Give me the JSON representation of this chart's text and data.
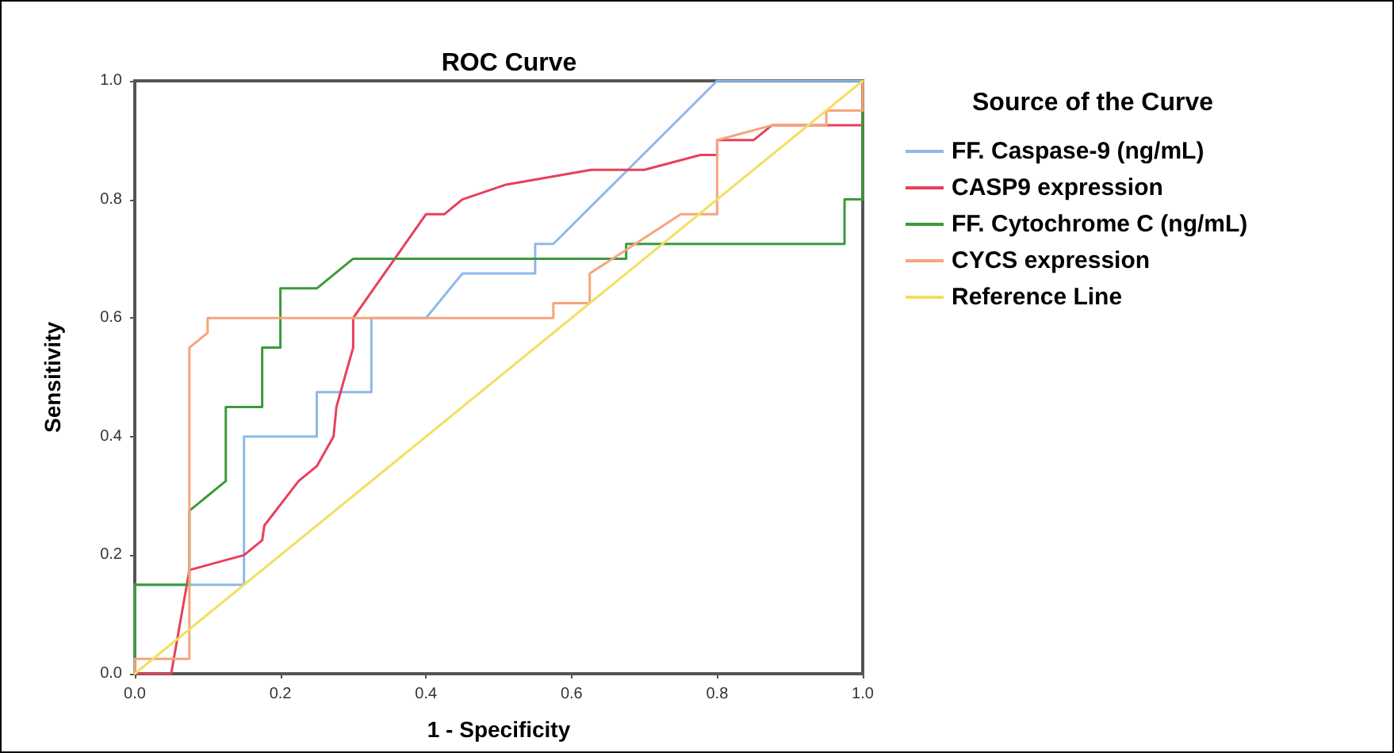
{
  "chart_data": {
    "type": "line",
    "title": "ROC Curve",
    "xlabel": "1 - Specificity",
    "ylabel": "Sensitivity",
    "legend_title": "Source of the Curve",
    "legend": "right",
    "grid": false,
    "marker": "none",
    "line_style": "solid",
    "xlim": [
      0,
      1
    ],
    "ylim": [
      0,
      1
    ],
    "xticks": [
      {
        "value": 0,
        "label": "0.0"
      },
      0.2,
      0.4,
      0.6,
      0.8,
      {
        "value": 1,
        "label": "1.0"
      }
    ],
    "yticks": [
      {
        "value": 0,
        "label": "0.0"
      },
      0.2,
      0.4,
      0.6,
      0.8,
      {
        "value": 1,
        "label": "1.0"
      }
    ],
    "series": [
      {
        "name": "FF. Caspase-9 (ng/mL)",
        "color": "#8db9ea",
        "x": [
          0,
          0,
          0.15,
          0.15,
          0.25,
          0.25,
          0.325,
          0.325,
          0.4,
          0.45,
          0.55,
          0.55,
          0.575,
          0.8,
          1
        ],
        "values": [
          0,
          0.15,
          0.15,
          0.4,
          0.4,
          0.475,
          0.475,
          0.6,
          0.6,
          0.675,
          0.675,
          0.725,
          0.725,
          1,
          1
        ]
      },
      {
        "name": "CASP9 expression",
        "color": "#e8405a",
        "x": [
          0,
          0.05,
          0.075,
          0.15,
          0.175,
          0.178,
          0.225,
          0.25,
          0.273,
          0.277,
          0.293,
          0.3,
          0.3,
          0.4,
          0.425,
          0.45,
          0.51,
          0.627,
          0.7,
          0.777,
          0.8,
          0.8,
          0.85,
          0.875,
          1,
          1
        ],
        "values": [
          0,
          0,
          0.175,
          0.2,
          0.225,
          0.25,
          0.325,
          0.35,
          0.4,
          0.45,
          0.52,
          0.55,
          0.6,
          0.775,
          0.775,
          0.8,
          0.825,
          0.85,
          0.85,
          0.875,
          0.875,
          0.9,
          0.9,
          0.925,
          0.925,
          1
        ]
      },
      {
        "name": "FF. Cytochrome C (ng/mL)",
        "color": "#3c9a3c",
        "x": [
          0,
          0,
          0.075,
          0.075,
          0.125,
          0.125,
          0.175,
          0.175,
          0.2,
          0.2,
          0.25,
          0.3,
          0.675,
          0.675,
          0.975,
          0.975,
          1,
          1
        ],
        "values": [
          0,
          0.15,
          0.15,
          0.275,
          0.325,
          0.45,
          0.45,
          0.55,
          0.55,
          0.65,
          0.65,
          0.7,
          0.7,
          0.725,
          0.725,
          0.8,
          0.8,
          1
        ]
      },
      {
        "name": "CYCS expression",
        "color": "#f7a47c",
        "x": [
          0,
          0,
          0.075,
          0.075,
          0.1,
          0.1,
          0.575,
          0.575,
          0.625,
          0.625,
          0.75,
          0.8,
          0.8,
          0.875,
          0.95,
          0.95,
          1,
          1
        ],
        "values": [
          0,
          0.025,
          0.025,
          0.55,
          0.575,
          0.6,
          0.6,
          0.625,
          0.625,
          0.675,
          0.775,
          0.775,
          0.9,
          0.925,
          0.925,
          0.95,
          0.95,
          1
        ]
      },
      {
        "name": "Reference Line",
        "color": "#f0e060",
        "x": [
          0,
          1
        ],
        "values": [
          0,
          1
        ]
      }
    ]
  }
}
